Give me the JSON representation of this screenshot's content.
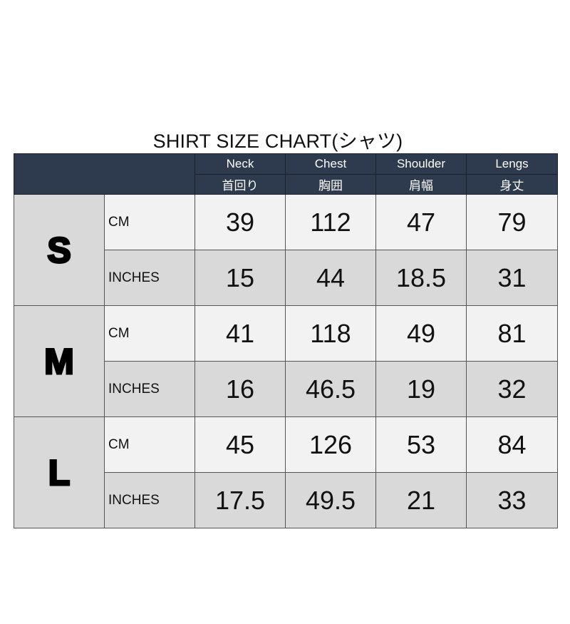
{
  "title": "SHIRT SIZE CHART(シャツ)",
  "columns": [
    {
      "en": "Neck",
      "ja": "首回り"
    },
    {
      "en": "Chest",
      "ja": "胸囲"
    },
    {
      "en": "Shoulder",
      "ja": "肩幅"
    },
    {
      "en": "Lengs",
      "ja": "身丈"
    }
  ],
  "colors": {
    "header": "#2e3a4e",
    "row_light": "#f2f2f2",
    "row_dark": "#d9d9d9"
  },
  "sizes": [
    {
      "size": "S",
      "rows": [
        {
          "unit": "CM",
          "values": [
            "39",
            "112",
            "47",
            "79"
          ]
        },
        {
          "unit": "INCHES",
          "values": [
            "15",
            "44",
            "18.5",
            "31"
          ]
        }
      ]
    },
    {
      "size": "M",
      "rows": [
        {
          "unit": "CM",
          "values": [
            "41",
            "118",
            "49",
            "81"
          ]
        },
        {
          "unit": "INCHES",
          "values": [
            "16",
            "46.5",
            "19",
            "32"
          ]
        }
      ]
    },
    {
      "size": "L",
      "rows": [
        {
          "unit": "CM",
          "values": [
            "45",
            "126",
            "53",
            "84"
          ]
        },
        {
          "unit": "INCHES",
          "values": [
            "17.5",
            "49.5",
            "21",
            "33"
          ]
        }
      ]
    }
  ]
}
